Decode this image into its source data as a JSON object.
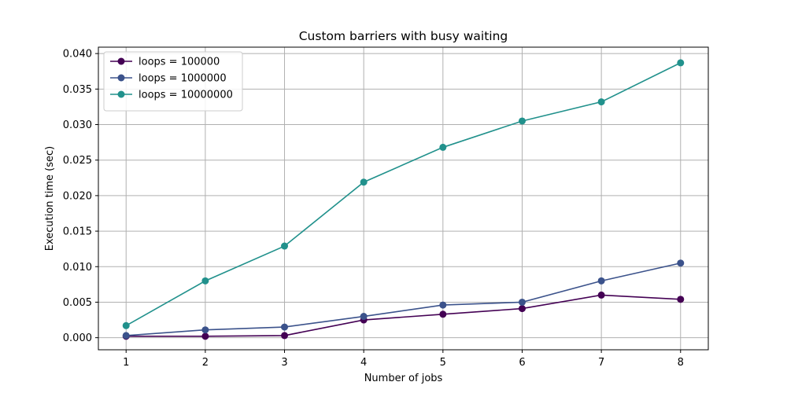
{
  "chart_data": {
    "type": "line",
    "title": "Custom barriers with busy waiting",
    "xlabel": "Number of jobs",
    "ylabel": "Execution time (sec)",
    "x": [
      1,
      2,
      3,
      4,
      5,
      6,
      7,
      8
    ],
    "xlim": [
      0.65,
      8.35
    ],
    "ylim": [
      -0.0017,
      0.0409
    ],
    "xticks": [
      1,
      2,
      3,
      4,
      5,
      6,
      7,
      8
    ],
    "yticks": [
      0.0,
      0.005,
      0.01,
      0.015,
      0.02,
      0.025,
      0.03,
      0.035,
      0.04
    ],
    "ytick_labels": [
      "0.000",
      "0.005",
      "0.010",
      "0.015",
      "0.020",
      "0.025",
      "0.030",
      "0.035",
      "0.040"
    ],
    "xtick_labels": [
      "1",
      "2",
      "3",
      "4",
      "5",
      "6",
      "7",
      "8"
    ],
    "grid": true,
    "legend_position": "top-left",
    "series": [
      {
        "name": "loops = 100000",
        "color": "#440154",
        "values": [
          0.0002,
          0.0002,
          0.0003,
          0.0025,
          0.0033,
          0.0041,
          0.006,
          0.0054
        ]
      },
      {
        "name": "loops = 1000000",
        "color": "#3b528b",
        "values": [
          0.0003,
          0.0011,
          0.0015,
          0.003,
          0.0046,
          0.005,
          0.008,
          0.0105
        ]
      },
      {
        "name": "loops = 10000000",
        "color": "#21918c",
        "values": [
          0.0017,
          0.008,
          0.0129,
          0.0219,
          0.0268,
          0.0305,
          0.0332,
          0.0387
        ]
      }
    ]
  }
}
